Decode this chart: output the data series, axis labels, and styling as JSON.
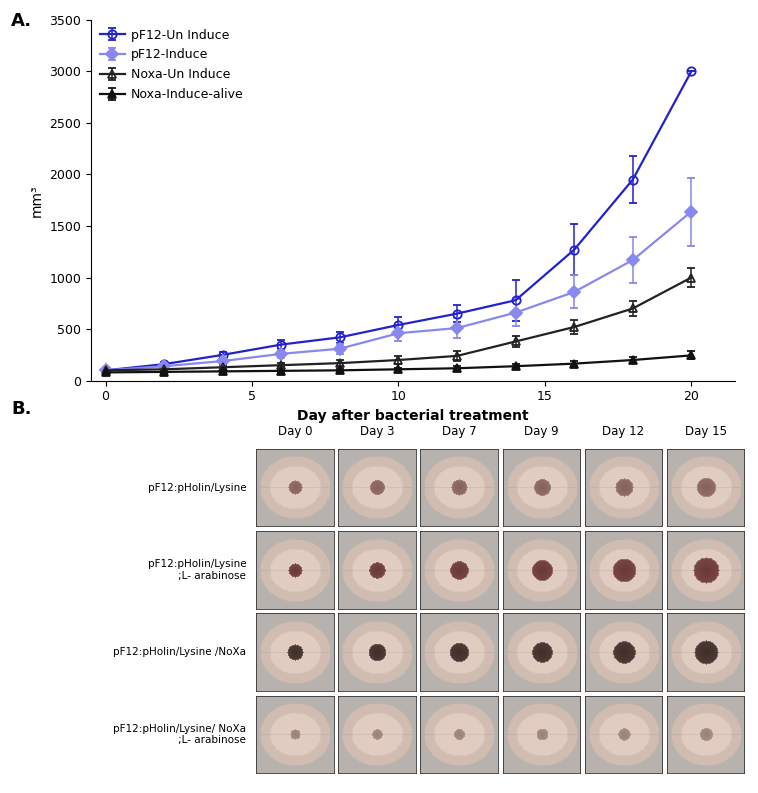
{
  "xlabel": "Day after bacterial treatment",
  "ylabel": "mm³",
  "ylim": [
    0,
    3500
  ],
  "yticks": [
    0,
    500,
    1000,
    1500,
    2000,
    2500,
    3000,
    3500
  ],
  "xticks": [
    0,
    5,
    10,
    15,
    20
  ],
  "days": [
    0,
    2,
    4,
    6,
    8,
    10,
    12,
    14,
    16,
    18,
    20
  ],
  "series": [
    {
      "label": "pF12-Un Induce",
      "color": "#2222CC",
      "marker": "o",
      "fillstyle": "none",
      "linewidth": 1.6,
      "markersize": 6,
      "y": [
        100,
        160,
        250,
        350,
        420,
        540,
        650,
        780,
        1270,
        1950,
        3000
      ],
      "yerr": [
        15,
        20,
        30,
        45,
        55,
        75,
        85,
        200,
        250,
        230,
        0
      ]
    },
    {
      "label": "pF12-Induce",
      "color": "#8888EE",
      "marker": "D",
      "fillstyle": "full",
      "linewidth": 1.6,
      "markersize": 6,
      "y": [
        100,
        140,
        190,
        260,
        310,
        460,
        510,
        660,
        860,
        1170,
        1640
      ],
      "yerr": [
        15,
        20,
        25,
        40,
        50,
        80,
        95,
        130,
        160,
        220,
        330
      ]
    },
    {
      "label": "Noxa-Un Induce",
      "color": "#222222",
      "marker": "^",
      "fillstyle": "none",
      "linewidth": 1.6,
      "markersize": 6,
      "y": [
        100,
        110,
        130,
        150,
        170,
        200,
        240,
        380,
        520,
        700,
        1000
      ],
      "yerr": [
        12,
        15,
        18,
        22,
        28,
        35,
        45,
        55,
        65,
        75,
        90
      ]
    },
    {
      "label": "Noxa-Induce-alive",
      "color": "#111111",
      "marker": "^",
      "fillstyle": "full",
      "linewidth": 1.6,
      "markersize": 6,
      "y": [
        80,
        85,
        90,
        95,
        100,
        110,
        120,
        140,
        165,
        200,
        245
      ],
      "yerr": [
        8,
        10,
        12,
        12,
        14,
        16,
        18,
        20,
        24,
        30,
        38
      ]
    }
  ],
  "panel_B": {
    "row_labels": [
      "pF12:pHolin/Lysine",
      "pF12:pHolin/Lysine\n;L- arabinose",
      "pF12:pHolin/Lysine /NoXa",
      "pF12:pHolin/Lysine/ NoXa\n;L- arabinose"
    ],
    "col_labels": [
      "Day 0",
      "Day 3",
      "Day 7",
      "Day 9",
      "Day 12",
      "Day 15"
    ],
    "n_rows": 4,
    "n_cols": 6
  }
}
